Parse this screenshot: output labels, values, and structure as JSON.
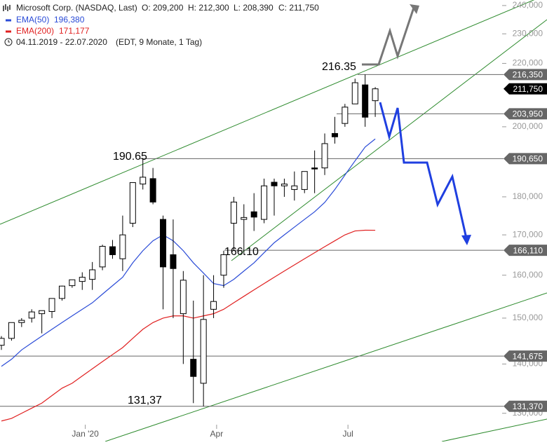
{
  "chart_data": {
    "type": "candlestick",
    "title": "Microsoft Corp. (NASDAQ, Last)",
    "ohlc_text": [
      "O: 209,200",
      "H: 212,300",
      "L: 208,390",
      "C: 211,750"
    ],
    "period": "04.11.2019 - 22.07.2020",
    "period_note": "(EDT, 9 Monate, 1 Tag)",
    "log_scale": true,
    "ylim": [
      124.6,
      242
    ],
    "xlim": [
      -0.14,
      54
    ],
    "yticks": [
      {
        "value": 240,
        "label": "240,000"
      },
      {
        "value": 230,
        "label": "230,000"
      },
      {
        "value": 220,
        "label": "220,000"
      },
      {
        "value": 200,
        "label": "200,000"
      },
      {
        "value": 180,
        "label": "180,000"
      },
      {
        "value": 170,
        "label": "170,000"
      },
      {
        "value": 160,
        "label": "160,000"
      },
      {
        "value": 150,
        "label": "150,000"
      },
      {
        "value": 140,
        "label": "140,000"
      },
      {
        "value": 130,
        "label": "130,000"
      }
    ],
    "xticks": [
      {
        "value": 8.3,
        "label": "Jan '20"
      },
      {
        "value": 21.3,
        "label": "Apr"
      },
      {
        "value": 34.3,
        "label": "Jul"
      }
    ],
    "categories": [
      null,
      null,
      null,
      null,
      null,
      null,
      null,
      null,
      null,
      null,
      null,
      null,
      null,
      null,
      null,
      null,
      null,
      null,
      null,
      null,
      null,
      null,
      null,
      null,
      null,
      null,
      null,
      null,
      null,
      null,
      null,
      null,
      null,
      null,
      null,
      null,
      null,
      null
    ],
    "open": [
      144,
      145.5,
      149,
      150,
      151,
      151.5,
      154.5,
      157.5,
      158.5,
      159,
      162,
      167,
      164,
      173,
      183.5,
      185,
      174,
      165,
      151,
      141,
      136,
      152,
      160,
      173,
      174,
      176,
      174,
      184,
      183,
      182,
      182,
      188,
      188,
      198,
      201,
      207,
      213,
      208
    ],
    "high": [
      146,
      149,
      150,
      152,
      151.5,
      154,
      157.5,
      158.8,
      160.7,
      163.2,
      167.5,
      168.7,
      175,
      183,
      190.65,
      188,
      175,
      174,
      161,
      154,
      160,
      160,
      166,
      180,
      178,
      181,
      185,
      185,
      185,
      187,
      187,
      193,
      198,
      203,
      207,
      215,
      216.35,
      212.3
    ],
    "low": [
      143,
      145,
      148,
      149,
      146.6,
      150,
      154,
      157,
      156.5,
      156.5,
      161.2,
      164,
      161,
      172,
      182,
      178,
      152,
      150,
      140,
      132,
      131.37,
      150,
      157,
      166,
      165,
      171,
      173,
      175,
      180,
      179,
      181,
      181,
      186,
      195,
      200,
      207,
      200,
      203
    ],
    "close": [
      145.5,
      149,
      149.5,
      151.4,
      151.7,
      154.5,
      157.4,
      158.9,
      159.5,
      161.3,
      167.1,
      165,
      170,
      183.9,
      185.4,
      178.6,
      162,
      161.6,
      158.8,
      137.4,
      149.7,
      153.8,
      165,
      178.6,
      174.5,
      174.6,
      183,
      183,
      183.5,
      183,
      187,
      187.7,
      195,
      197,
      206,
      213.7,
      202.9,
      211.75
    ],
    "up_color": "#ffffff",
    "down_color": "#000000",
    "lines": [
      {
        "name": "EMA(50)",
        "last_label": "196,380",
        "color": "#2a4bd7",
        "values": [
          139.5,
          141,
          143,
          144.5,
          146,
          147.5,
          149,
          150.5,
          152,
          153.5,
          155.5,
          157.5,
          159.5,
          163,
          166,
          168.5,
          170,
          168.5,
          166,
          163,
          160.5,
          158,
          157.5,
          159,
          161,
          163,
          165.5,
          168,
          170,
          172,
          174,
          176,
          178.5,
          182,
          186,
          190,
          194,
          196.38
        ]
      },
      {
        "name": "EMA(200)",
        "last_label": "171,177",
        "color": "#e02020",
        "values": [
          128.5,
          129,
          130,
          131,
          132,
          133.5,
          135,
          136,
          137.5,
          139,
          140.5,
          142,
          143.5,
          145.5,
          147.5,
          149,
          150,
          150.5,
          150.5,
          150,
          150.5,
          151,
          152,
          153.5,
          155,
          156.5,
          158,
          159.5,
          161,
          162.5,
          164,
          165.5,
          167,
          168.5,
          170,
          171,
          171.2,
          171.18
        ]
      }
    ],
    "levels": [
      {
        "value": 216.35,
        "label": "216,350"
      },
      {
        "value": 211.75,
        "label": "211,750",
        "current": true
      },
      {
        "value": 203.95,
        "label": "203,950"
      },
      {
        "value": 190.65,
        "label": "190,650"
      },
      {
        "value": 166.11,
        "label": "166,110"
      },
      {
        "value": 141.675,
        "label": "141,675"
      },
      {
        "value": 131.37,
        "label": "131,370"
      }
    ],
    "annotations": [
      "216.35",
      "190.65",
      "166.10",
      "131,37"
    ]
  }
}
